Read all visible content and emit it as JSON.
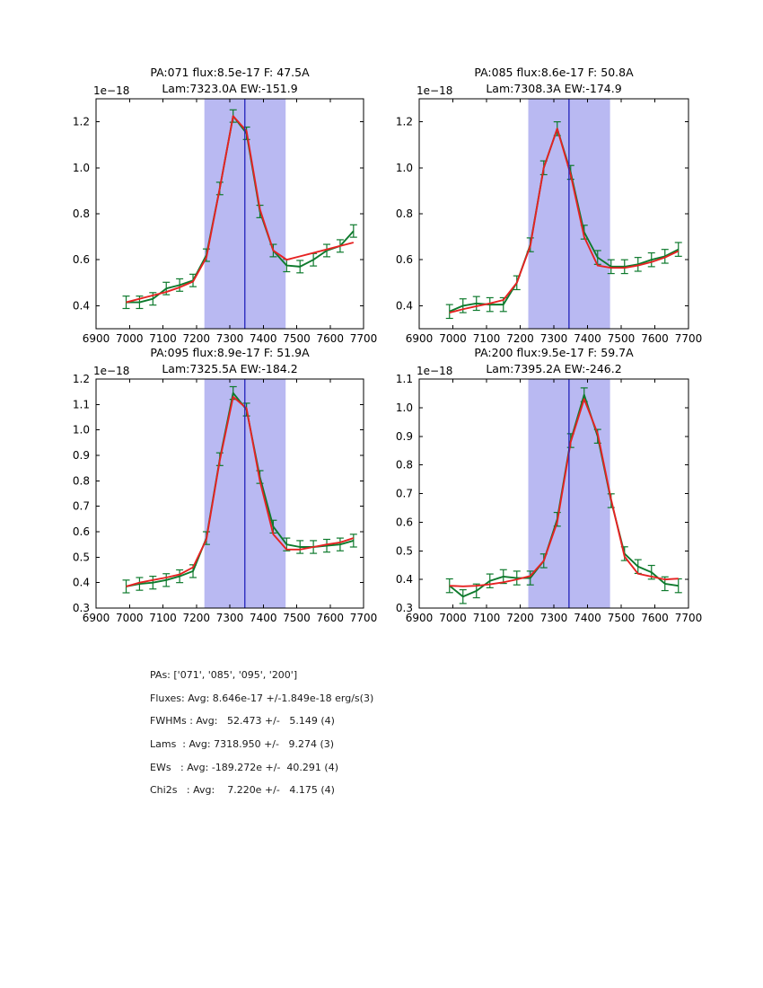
{
  "colors": {
    "background": "#ffffff",
    "band": "#b9b9f2",
    "vline": "#2222bb",
    "spectrum": "#0e7a2d",
    "fit": "#e62222",
    "axis": "#000000"
  },
  "chart_data": [
    {
      "type": "line",
      "id": "pa-071",
      "title_line1": "PA:071 flux:8.5e-17 F: 47.5A",
      "title_line2": "Lam:7323.0A EW:-151.9",
      "offset_label": "1e−18",
      "xlim": [
        6900,
        7700
      ],
      "ylim": [
        0.3,
        1.3
      ],
      "xticks": [
        6900,
        7000,
        7100,
        7200,
        7300,
        7400,
        7500,
        7600,
        7700
      ],
      "yticks": [
        0.4,
        0.6,
        0.8,
        1.0,
        1.2
      ],
      "band": [
        7224,
        7467
      ],
      "vline": 7345,
      "x": [
        6990,
        7030,
        7070,
        7110,
        7150,
        7190,
        7230,
        7270,
        7310,
        7350,
        7390,
        7430,
        7470,
        7510,
        7550,
        7590,
        7630,
        7670
      ],
      "series": [
        {
          "name": "spectrum",
          "err": 0.027,
          "values": [
            0.415,
            0.415,
            0.43,
            0.475,
            0.49,
            0.51,
            0.62,
            0.91,
            1.225,
            1.15,
            0.81,
            0.64,
            0.575,
            0.57,
            0.6,
            0.64,
            0.66,
            0.725
          ]
        },
        {
          "name": "fit",
          "values": [
            0.415,
            0.43,
            0.445,
            0.46,
            0.48,
            0.505,
            0.61,
            0.91,
            1.225,
            1.16,
            0.82,
            0.64,
            0.6,
            0.615,
            0.63,
            0.645,
            0.66,
            0.675
          ]
        }
      ]
    },
    {
      "type": "line",
      "id": "pa-085",
      "title_line1": "PA:085 flux:8.6e-17 F: 50.8A",
      "title_line2": "Lam:7308.3A EW:-174.9",
      "offset_label": "1e−18",
      "xlim": [
        6900,
        7700
      ],
      "ylim": [
        0.3,
        1.3
      ],
      "xticks": [
        6900,
        7000,
        7100,
        7200,
        7300,
        7400,
        7500,
        7600,
        7700
      ],
      "yticks": [
        0.4,
        0.6,
        0.8,
        1.0,
        1.2
      ],
      "band": [
        7224,
        7467
      ],
      "vline": 7345,
      "x": [
        6990,
        7030,
        7070,
        7110,
        7150,
        7190,
        7230,
        7270,
        7310,
        7350,
        7390,
        7430,
        7470,
        7510,
        7550,
        7590,
        7630,
        7670
      ],
      "series": [
        {
          "name": "spectrum",
          "err": 0.03,
          "values": [
            0.375,
            0.4,
            0.41,
            0.405,
            0.405,
            0.5,
            0.665,
            1.0,
            1.17,
            0.98,
            0.72,
            0.61,
            0.57,
            0.57,
            0.58,
            0.6,
            0.615,
            0.645
          ]
        },
        {
          "name": "fit",
          "values": [
            0.37,
            0.385,
            0.398,
            0.41,
            0.425,
            0.5,
            0.66,
            1.0,
            1.17,
            0.97,
            0.7,
            0.575,
            0.565,
            0.565,
            0.575,
            0.59,
            0.61,
            0.638
          ]
        }
      ]
    },
    {
      "type": "line",
      "id": "pa-095",
      "title_line1": "PA:095 flux:8.9e-17 F: 51.9A",
      "title_line2": "Lam:7325.5A EW:-184.2",
      "offset_label": "1e−18",
      "xlim": [
        6900,
        7700
      ],
      "ylim": [
        0.3,
        1.2
      ],
      "xticks": [
        6900,
        7000,
        7100,
        7200,
        7300,
        7400,
        7500,
        7600,
        7700
      ],
      "yticks": [
        0.3,
        0.4,
        0.5,
        0.6,
        0.7,
        0.8,
        0.9,
        1.0,
        1.1,
        1.2
      ],
      "band": [
        7224,
        7467
      ],
      "vline": 7345,
      "x": [
        6990,
        7030,
        7070,
        7110,
        7150,
        7190,
        7230,
        7270,
        7310,
        7350,
        7390,
        7430,
        7470,
        7510,
        7550,
        7590,
        7630,
        7670
      ],
      "series": [
        {
          "name": "spectrum",
          "err": 0.025,
          "values": [
            0.385,
            0.395,
            0.4,
            0.41,
            0.425,
            0.445,
            0.575,
            0.885,
            1.145,
            1.08,
            0.815,
            0.62,
            0.55,
            0.54,
            0.54,
            0.545,
            0.55,
            0.565
          ]
        },
        {
          "name": "fit",
          "values": [
            0.385,
            0.4,
            0.41,
            0.42,
            0.432,
            0.46,
            0.57,
            0.88,
            1.13,
            1.085,
            0.8,
            0.59,
            0.53,
            0.53,
            0.54,
            0.55,
            0.558,
            0.575
          ]
        }
      ]
    },
    {
      "type": "line",
      "id": "pa-200",
      "title_line1": "PA:200 flux:9.5e-17 F: 59.7A",
      "title_line2": "Lam:7395.2A EW:-246.2",
      "offset_label": "1e−18",
      "xlim": [
        6900,
        7700
      ],
      "ylim": [
        0.3,
        1.1
      ],
      "xticks": [
        6900,
        7000,
        7100,
        7200,
        7300,
        7400,
        7500,
        7600,
        7700
      ],
      "yticks": [
        0.3,
        0.4,
        0.5,
        0.6,
        0.7,
        0.8,
        0.9,
        1.0,
        1.1
      ],
      "band": [
        7224,
        7467
      ],
      "vline": 7345,
      "x": [
        6990,
        7030,
        7070,
        7110,
        7150,
        7190,
        7230,
        7270,
        7310,
        7350,
        7390,
        7430,
        7470,
        7510,
        7550,
        7590,
        7630,
        7670
      ],
      "series": [
        {
          "name": "spectrum",
          "err": 0.024,
          "values": [
            0.378,
            0.34,
            0.36,
            0.395,
            0.41,
            0.405,
            0.405,
            0.465,
            0.61,
            0.885,
            1.045,
            0.9,
            0.675,
            0.49,
            0.445,
            0.425,
            0.385,
            0.378
          ]
        },
        {
          "name": "fit",
          "values": [
            0.378,
            0.376,
            0.378,
            0.383,
            0.39,
            0.4,
            0.412,
            0.465,
            0.6,
            0.88,
            1.03,
            0.91,
            0.68,
            0.48,
            0.42,
            0.41,
            0.4,
            0.403
          ]
        }
      ]
    }
  ],
  "stats": {
    "lines": [
      "PAs: ['071', '085', '095', '200']",
      "Fluxes: Avg: 8.646e-17 +/-1.849e-18 erg/s(3)",
      "FWHMs : Avg:   52.473 +/-   5.149 (4)",
      "Lams  : Avg: 7318.950 +/-   9.274 (3)",
      "EWs   : Avg: -189.272e +/-  40.291 (4)",
      "Chi2s   : Avg:    7.220e +/-   4.175 (4)"
    ]
  }
}
